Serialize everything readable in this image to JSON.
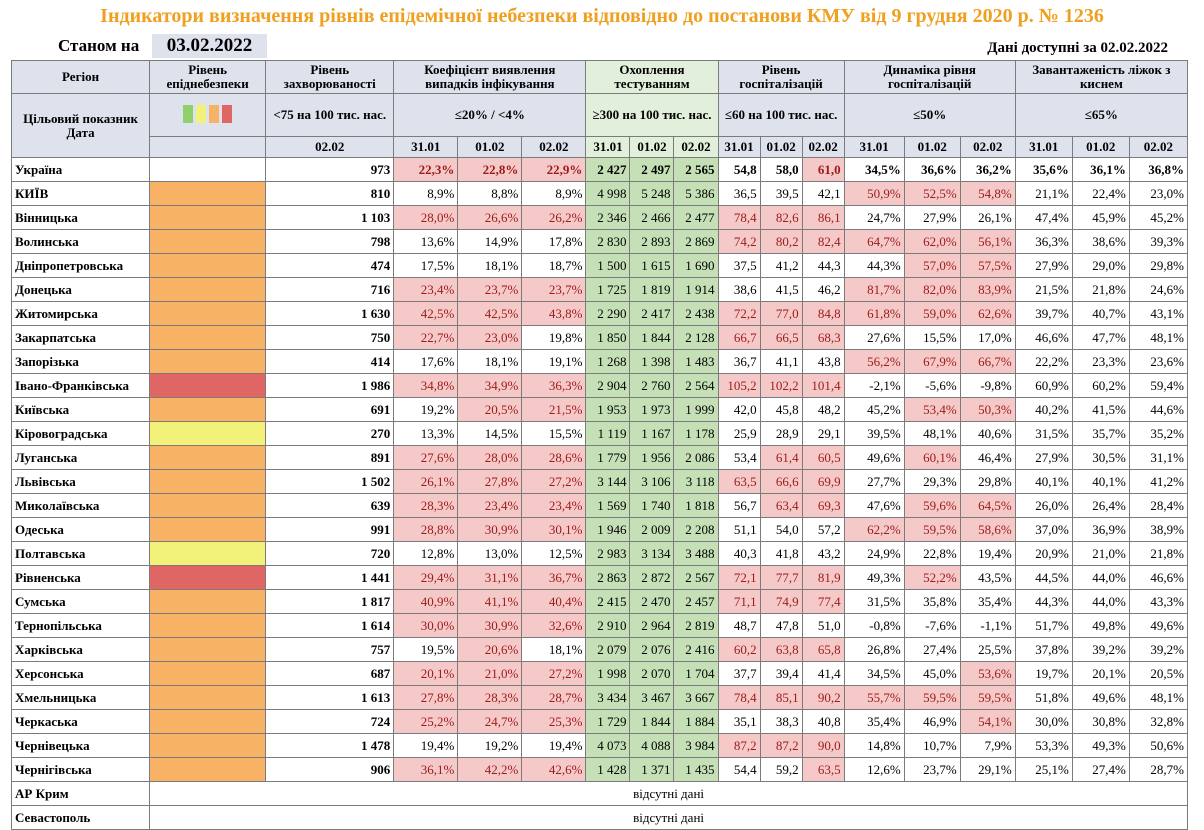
{
  "title": "Індикатори визначення рівнів епідемічної небезпеки відповідно до постанови КМУ від 9 грудня 2020 р. № 1236",
  "as_of_label": "Станом на",
  "as_of_date": "03.02.2022",
  "avail_label": "Дані доступні за",
  "avail_date": "02.02.2022",
  "headers": {
    "region": "Регіон",
    "level": "Рівень епіднебезпеки",
    "incidence": "Рівень захворюваності",
    "positivity": "Коефіцієнт виявлення випадків інфікування",
    "testing": "Охоплення тестуванням",
    "hospital": "Рівень госпіталізацій",
    "dynamics": "Динаміка рівня госпіталізацій",
    "oxygen": "Завантаженість ліжок з киснем",
    "target_label": "Цільовий показник",
    "target_incidence": "<75 на 100 тис. нас.",
    "target_positivity": "≤20% / <4%",
    "target_testing": "≥300 на 100 тис. нас.",
    "target_hospital": "≤60 на 100 тис. нас.",
    "target_dynamics": "≤50%",
    "target_oxygen": "≤65%",
    "date_label": "Дата",
    "d_single": "02.02",
    "d1": "31.01",
    "d2": "01.02",
    "d3": "02.02"
  },
  "legend_colors": [
    "#8fd06a",
    "#f2f27a",
    "#f7b266",
    "#e06666"
  ],
  "level_colors": {
    "orange": "#f7b266",
    "red": "#e06666",
    "yellow": "#f2f27a"
  },
  "rows": [
    {
      "name": "Україна",
      "level": "",
      "inc": "973",
      "pos": [
        "22,3%",
        "22,8%",
        "22,9%"
      ],
      "pos_red": [
        1,
        1,
        1
      ],
      "test": [
        "2 427",
        "2 497",
        "2 565"
      ],
      "hosp": [
        "54,8",
        "58,0",
        "61,0"
      ],
      "hosp_red": [
        0,
        0,
        1
      ],
      "dyn": [
        "34,5%",
        "36,6%",
        "36,2%"
      ],
      "dyn_red": [
        0,
        0,
        0
      ],
      "oxy": [
        "35,6%",
        "36,1%",
        "36,8%"
      ]
    },
    {
      "name": "КИЇВ",
      "level": "orange",
      "inc": "810",
      "pos": [
        "8,9%",
        "8,8%",
        "8,9%"
      ],
      "pos_red": [
        0,
        0,
        0
      ],
      "test": [
        "4 998",
        "5 248",
        "5 386"
      ],
      "hosp": [
        "36,5",
        "39,5",
        "42,1"
      ],
      "hosp_red": [
        0,
        0,
        0
      ],
      "dyn": [
        "50,9%",
        "52,5%",
        "54,8%"
      ],
      "dyn_red": [
        1,
        1,
        1
      ],
      "oxy": [
        "21,1%",
        "22,4%",
        "23,0%"
      ]
    },
    {
      "name": "Вінницька",
      "level": "orange",
      "inc": "1 103",
      "pos": [
        "28,0%",
        "26,6%",
        "26,2%"
      ],
      "pos_red": [
        1,
        1,
        1
      ],
      "test": [
        "2 346",
        "2 466",
        "2 477"
      ],
      "hosp": [
        "78,4",
        "82,6",
        "86,1"
      ],
      "hosp_red": [
        1,
        1,
        1
      ],
      "dyn": [
        "24,7%",
        "27,9%",
        "26,1%"
      ],
      "dyn_red": [
        0,
        0,
        0
      ],
      "oxy": [
        "47,4%",
        "45,9%",
        "45,2%"
      ]
    },
    {
      "name": "Волинська",
      "level": "orange",
      "inc": "798",
      "pos": [
        "13,6%",
        "14,9%",
        "17,8%"
      ],
      "pos_red": [
        0,
        0,
        0
      ],
      "test": [
        "2 830",
        "2 893",
        "2 869"
      ],
      "hosp": [
        "74,2",
        "80,2",
        "82,4"
      ],
      "hosp_red": [
        1,
        1,
        1
      ],
      "dyn": [
        "64,7%",
        "62,0%",
        "56,1%"
      ],
      "dyn_red": [
        1,
        1,
        1
      ],
      "oxy": [
        "36,3%",
        "38,6%",
        "39,3%"
      ]
    },
    {
      "name": "Дніпропетровська",
      "level": "orange",
      "inc": "474",
      "pos": [
        "17,5%",
        "18,1%",
        "18,7%"
      ],
      "pos_red": [
        0,
        0,
        0
      ],
      "test": [
        "1 500",
        "1 615",
        "1 690"
      ],
      "hosp": [
        "37,5",
        "41,2",
        "44,3"
      ],
      "hosp_red": [
        0,
        0,
        0
      ],
      "dyn": [
        "44,3%",
        "57,0%",
        "57,5%"
      ],
      "dyn_red": [
        0,
        1,
        1
      ],
      "oxy": [
        "27,9%",
        "29,0%",
        "29,8%"
      ]
    },
    {
      "name": "Донецька",
      "level": "orange",
      "inc": "716",
      "pos": [
        "23,4%",
        "23,7%",
        "23,7%"
      ],
      "pos_red": [
        1,
        1,
        1
      ],
      "test": [
        "1 725",
        "1 819",
        "1 914"
      ],
      "hosp": [
        "38,6",
        "41,5",
        "46,2"
      ],
      "hosp_red": [
        0,
        0,
        0
      ],
      "dyn": [
        "81,7%",
        "82,0%",
        "83,9%"
      ],
      "dyn_red": [
        1,
        1,
        1
      ],
      "oxy": [
        "21,5%",
        "21,8%",
        "24,6%"
      ]
    },
    {
      "name": "Житомирська",
      "level": "orange",
      "inc": "1 630",
      "pos": [
        "42,5%",
        "42,5%",
        "43,8%"
      ],
      "pos_red": [
        1,
        1,
        1
      ],
      "test": [
        "2 290",
        "2 417",
        "2 438"
      ],
      "hosp": [
        "72,2",
        "77,0",
        "84,8"
      ],
      "hosp_red": [
        1,
        1,
        1
      ],
      "dyn": [
        "61,8%",
        "59,0%",
        "62,6%"
      ],
      "dyn_red": [
        1,
        1,
        1
      ],
      "oxy": [
        "39,7%",
        "40,7%",
        "43,1%"
      ]
    },
    {
      "name": "Закарпатська",
      "level": "orange",
      "inc": "750",
      "pos": [
        "22,7%",
        "23,0%",
        "19,8%"
      ],
      "pos_red": [
        1,
        1,
        0
      ],
      "test": [
        "1 850",
        "1 844",
        "2 128"
      ],
      "hosp": [
        "66,7",
        "66,5",
        "68,3"
      ],
      "hosp_red": [
        1,
        1,
        1
      ],
      "dyn": [
        "27,6%",
        "15,5%",
        "17,0%"
      ],
      "dyn_red": [
        0,
        0,
        0
      ],
      "oxy": [
        "46,6%",
        "47,7%",
        "48,1%"
      ]
    },
    {
      "name": "Запорізька",
      "level": "orange",
      "inc": "414",
      "pos": [
        "17,6%",
        "18,1%",
        "19,1%"
      ],
      "pos_red": [
        0,
        0,
        0
      ],
      "test": [
        "1 268",
        "1 398",
        "1 483"
      ],
      "hosp": [
        "36,7",
        "41,1",
        "43,8"
      ],
      "hosp_red": [
        0,
        0,
        0
      ],
      "dyn": [
        "56,2%",
        "67,9%",
        "66,7%"
      ],
      "dyn_red": [
        1,
        1,
        1
      ],
      "oxy": [
        "22,2%",
        "23,3%",
        "23,6%"
      ]
    },
    {
      "name": "Івано-Франківська",
      "level": "red",
      "inc": "1 986",
      "pos": [
        "34,8%",
        "34,9%",
        "36,3%"
      ],
      "pos_red": [
        1,
        1,
        1
      ],
      "test": [
        "2 904",
        "2 760",
        "2 564"
      ],
      "hosp": [
        "105,2",
        "102,2",
        "101,4"
      ],
      "hosp_red": [
        1,
        1,
        1
      ],
      "dyn": [
        "-2,1%",
        "-5,6%",
        "-9,8%"
      ],
      "dyn_red": [
        0,
        0,
        0
      ],
      "oxy": [
        "60,9%",
        "60,2%",
        "59,4%"
      ]
    },
    {
      "name": "Київська",
      "level": "orange",
      "inc": "691",
      "pos": [
        "19,2%",
        "20,5%",
        "21,5%"
      ],
      "pos_red": [
        0,
        1,
        1
      ],
      "test": [
        "1 953",
        "1 973",
        "1 999"
      ],
      "hosp": [
        "42,0",
        "45,8",
        "48,2"
      ],
      "hosp_red": [
        0,
        0,
        0
      ],
      "dyn": [
        "45,2%",
        "53,4%",
        "50,3%"
      ],
      "dyn_red": [
        0,
        1,
        1
      ],
      "oxy": [
        "40,2%",
        "41,5%",
        "44,6%"
      ]
    },
    {
      "name": "Кіровоградська",
      "level": "yellow",
      "inc": "270",
      "pos": [
        "13,3%",
        "14,5%",
        "15,5%"
      ],
      "pos_red": [
        0,
        0,
        0
      ],
      "test": [
        "1 119",
        "1 167",
        "1 178"
      ],
      "hosp": [
        "25,9",
        "28,9",
        "29,1"
      ],
      "hosp_red": [
        0,
        0,
        0
      ],
      "dyn": [
        "39,5%",
        "48,1%",
        "40,6%"
      ],
      "dyn_red": [
        0,
        0,
        0
      ],
      "oxy": [
        "31,5%",
        "35,7%",
        "35,2%"
      ]
    },
    {
      "name": "Луганська",
      "level": "orange",
      "inc": "891",
      "pos": [
        "27,6%",
        "28,0%",
        "28,6%"
      ],
      "pos_red": [
        1,
        1,
        1
      ],
      "test": [
        "1 779",
        "1 956",
        "2 086"
      ],
      "hosp": [
        "53,4",
        "61,4",
        "60,5"
      ],
      "hosp_red": [
        0,
        1,
        1
      ],
      "dyn": [
        "49,6%",
        "60,1%",
        "46,4%"
      ],
      "dyn_red": [
        0,
        1,
        0
      ],
      "oxy": [
        "27,9%",
        "30,5%",
        "31,1%"
      ]
    },
    {
      "name": "Львівська",
      "level": "orange",
      "inc": "1 502",
      "pos": [
        "26,1%",
        "27,8%",
        "27,2%"
      ],
      "pos_red": [
        1,
        1,
        1
      ],
      "test": [
        "3 144",
        "3 106",
        "3 118"
      ],
      "hosp": [
        "63,5",
        "66,6",
        "69,9"
      ],
      "hosp_red": [
        1,
        1,
        1
      ],
      "dyn": [
        "27,7%",
        "29,3%",
        "29,8%"
      ],
      "dyn_red": [
        0,
        0,
        0
      ],
      "oxy": [
        "40,1%",
        "40,1%",
        "41,2%"
      ]
    },
    {
      "name": "Миколаївська",
      "level": "orange",
      "inc": "639",
      "pos": [
        "28,3%",
        "23,4%",
        "23,4%"
      ],
      "pos_red": [
        1,
        1,
        1
      ],
      "test": [
        "1 569",
        "1 740",
        "1 818"
      ],
      "hosp": [
        "56,7",
        "63,4",
        "69,3"
      ],
      "hosp_red": [
        0,
        1,
        1
      ],
      "dyn": [
        "47,6%",
        "59,6%",
        "64,5%"
      ],
      "dyn_red": [
        0,
        1,
        1
      ],
      "oxy": [
        "26,0%",
        "26,4%",
        "28,4%"
      ]
    },
    {
      "name": "Одеська",
      "level": "orange",
      "inc": "991",
      "pos": [
        "28,8%",
        "30,9%",
        "30,1%"
      ],
      "pos_red": [
        1,
        1,
        1
      ],
      "test": [
        "1 946",
        "2 009",
        "2 208"
      ],
      "hosp": [
        "51,1",
        "54,0",
        "57,2"
      ],
      "hosp_red": [
        0,
        0,
        0
      ],
      "dyn": [
        "62,2%",
        "59,5%",
        "58,6%"
      ],
      "dyn_red": [
        1,
        1,
        1
      ],
      "oxy": [
        "37,0%",
        "36,9%",
        "38,9%"
      ]
    },
    {
      "name": "Полтавська",
      "level": "yellow",
      "inc": "720",
      "pos": [
        "12,8%",
        "13,0%",
        "12,5%"
      ],
      "pos_red": [
        0,
        0,
        0
      ],
      "test": [
        "2 983",
        "3 134",
        "3 488"
      ],
      "hosp": [
        "40,3",
        "41,8",
        "43,2"
      ],
      "hosp_red": [
        0,
        0,
        0
      ],
      "dyn": [
        "24,9%",
        "22,8%",
        "19,4%"
      ],
      "dyn_red": [
        0,
        0,
        0
      ],
      "oxy": [
        "20,9%",
        "21,0%",
        "21,8%"
      ]
    },
    {
      "name": "Рівненська",
      "level": "red",
      "inc": "1 441",
      "pos": [
        "29,4%",
        "31,1%",
        "36,7%"
      ],
      "pos_red": [
        1,
        1,
        1
      ],
      "test": [
        "2 863",
        "2 872",
        "2 567"
      ],
      "hosp": [
        "72,1",
        "77,7",
        "81,9"
      ],
      "hosp_red": [
        1,
        1,
        1
      ],
      "dyn": [
        "49,3%",
        "52,2%",
        "43,5%"
      ],
      "dyn_red": [
        0,
        1,
        0
      ],
      "oxy": [
        "44,5%",
        "44,0%",
        "46,6%"
      ]
    },
    {
      "name": "Сумська",
      "level": "orange",
      "inc": "1 817",
      "pos": [
        "40,9%",
        "41,1%",
        "40,4%"
      ],
      "pos_red": [
        1,
        1,
        1
      ],
      "test": [
        "2 415",
        "2 470",
        "2 457"
      ],
      "hosp": [
        "71,1",
        "74,9",
        "77,4"
      ],
      "hosp_red": [
        1,
        1,
        1
      ],
      "dyn": [
        "31,5%",
        "35,8%",
        "35,4%"
      ],
      "dyn_red": [
        0,
        0,
        0
      ],
      "oxy": [
        "44,3%",
        "44,0%",
        "43,3%"
      ]
    },
    {
      "name": "Тернопільська",
      "level": "orange",
      "inc": "1 614",
      "pos": [
        "30,0%",
        "30,9%",
        "32,6%"
      ],
      "pos_red": [
        1,
        1,
        1
      ],
      "test": [
        "2 910",
        "2 964",
        "2 819"
      ],
      "hosp": [
        "48,7",
        "47,8",
        "51,0"
      ],
      "hosp_red": [
        0,
        0,
        0
      ],
      "dyn": [
        "-0,8%",
        "-7,6%",
        "-1,1%"
      ],
      "dyn_red": [
        0,
        0,
        0
      ],
      "oxy": [
        "51,7%",
        "49,8%",
        "49,6%"
      ]
    },
    {
      "name": "Харківська",
      "level": "orange",
      "inc": "757",
      "pos": [
        "19,5%",
        "20,6%",
        "18,1%"
      ],
      "pos_red": [
        0,
        1,
        0
      ],
      "test": [
        "2 079",
        "2 076",
        "2 416"
      ],
      "hosp": [
        "60,2",
        "63,8",
        "65,8"
      ],
      "hosp_red": [
        1,
        1,
        1
      ],
      "dyn": [
        "26,8%",
        "27,4%",
        "25,5%"
      ],
      "dyn_red": [
        0,
        0,
        0
      ],
      "oxy": [
        "37,8%",
        "39,2%",
        "39,2%"
      ]
    },
    {
      "name": "Херсонська",
      "level": "orange",
      "inc": "687",
      "pos": [
        "20,1%",
        "21,0%",
        "27,2%"
      ],
      "pos_red": [
        1,
        1,
        1
      ],
      "test": [
        "1 998",
        "2 070",
        "1 704"
      ],
      "hosp": [
        "37,7",
        "39,4",
        "41,4"
      ],
      "hosp_red": [
        0,
        0,
        0
      ],
      "dyn": [
        "34,5%",
        "45,0%",
        "53,6%"
      ],
      "dyn_red": [
        0,
        0,
        1
      ],
      "oxy": [
        "19,7%",
        "20,1%",
        "20,5%"
      ]
    },
    {
      "name": "Хмельницька",
      "level": "orange",
      "inc": "1 613",
      "pos": [
        "27,8%",
        "28,3%",
        "28,7%"
      ],
      "pos_red": [
        1,
        1,
        1
      ],
      "test": [
        "3 434",
        "3 467",
        "3 667"
      ],
      "hosp": [
        "78,4",
        "85,1",
        "90,2"
      ],
      "hosp_red": [
        1,
        1,
        1
      ],
      "dyn": [
        "55,7%",
        "59,5%",
        "59,5%"
      ],
      "dyn_red": [
        1,
        1,
        1
      ],
      "oxy": [
        "51,8%",
        "49,6%",
        "48,1%"
      ]
    },
    {
      "name": "Черкаська",
      "level": "orange",
      "inc": "724",
      "pos": [
        "25,2%",
        "24,7%",
        "25,3%"
      ],
      "pos_red": [
        1,
        1,
        1
      ],
      "test": [
        "1 729",
        "1 844",
        "1 884"
      ],
      "hosp": [
        "35,1",
        "38,3",
        "40,8"
      ],
      "hosp_red": [
        0,
        0,
        0
      ],
      "dyn": [
        "35,4%",
        "46,9%",
        "54,1%"
      ],
      "dyn_red": [
        0,
        0,
        1
      ],
      "oxy": [
        "30,0%",
        "30,8%",
        "32,8%"
      ]
    },
    {
      "name": "Чернівецька",
      "level": "orange",
      "inc": "1 478",
      "pos": [
        "19,4%",
        "19,2%",
        "19,4%"
      ],
      "pos_red": [
        0,
        0,
        0
      ],
      "test": [
        "4 073",
        "4 088",
        "3 984"
      ],
      "hosp": [
        "87,2",
        "87,2",
        "90,0"
      ],
      "hosp_red": [
        1,
        1,
        1
      ],
      "dyn": [
        "14,8%",
        "10,7%",
        "7,9%"
      ],
      "dyn_red": [
        0,
        0,
        0
      ],
      "oxy": [
        "53,3%",
        "49,3%",
        "50,6%"
      ]
    },
    {
      "name": "Чернігівська",
      "level": "orange",
      "inc": "906",
      "pos": [
        "36,1%",
        "42,2%",
        "42,6%"
      ],
      "pos_red": [
        1,
        1,
        1
      ],
      "test": [
        "1 428",
        "1 371",
        "1 435"
      ],
      "hosp": [
        "54,4",
        "59,2",
        "63,5"
      ],
      "hosp_red": [
        0,
        0,
        1
      ],
      "dyn": [
        "12,6%",
        "23,7%",
        "29,1%"
      ],
      "dyn_red": [
        0,
        0,
        0
      ],
      "oxy": [
        "25,1%",
        "27,4%",
        "28,7%"
      ]
    }
  ],
  "nodata_rows": [
    {
      "name": "АР Крим",
      "text": "відсутні дані"
    },
    {
      "name": "Севастополь",
      "text": "відсутні дані"
    }
  ]
}
